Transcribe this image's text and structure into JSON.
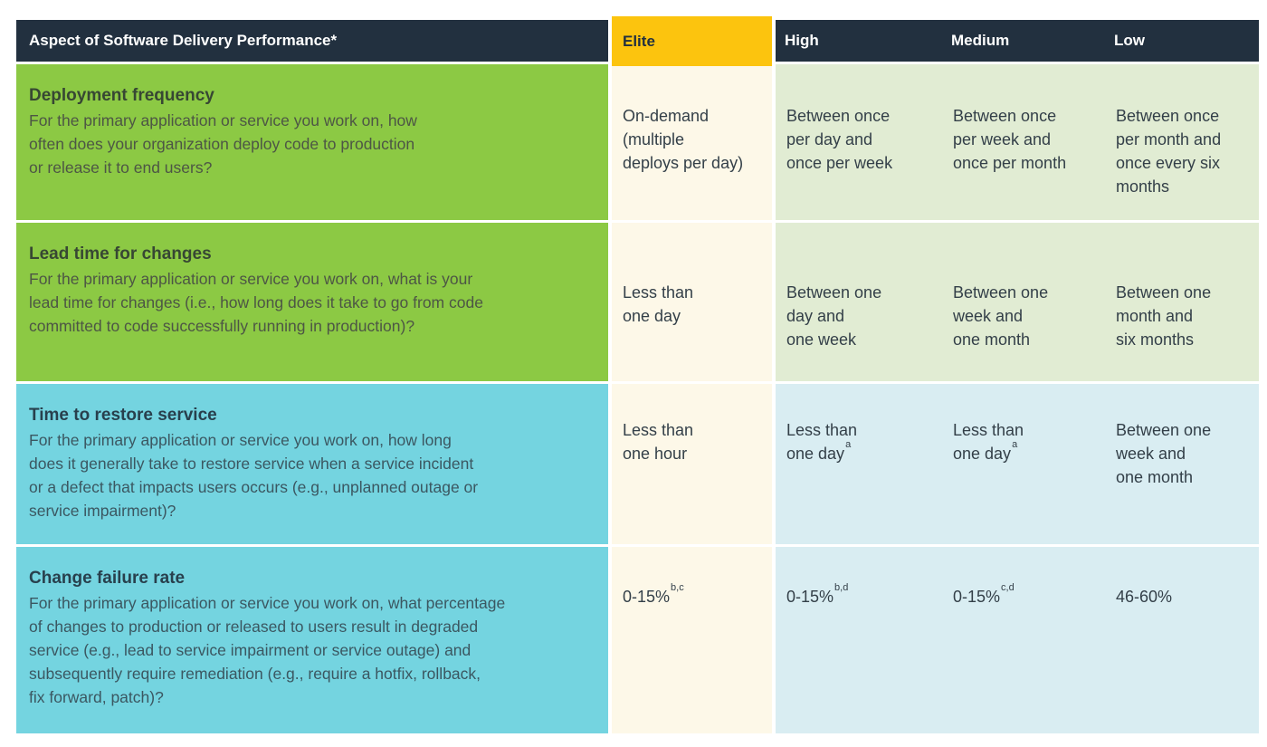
{
  "header": {
    "aspect_label": "Aspect of Software Delivery Performance*",
    "levels": [
      "Elite",
      "High",
      "Medium",
      "Low"
    ]
  },
  "colors": {
    "header_navy": "#22303f",
    "elite_yellow": "#fcc40e",
    "row_green": "#8cc944",
    "row_cyan": "#74d4e0",
    "elite_cream": "#fdf8e8",
    "cell_light_green": "#e1ecd3",
    "cell_light_blue": "#d9edf2"
  },
  "rows": [
    {
      "metric": "Deployment frequency",
      "description": "For the primary application or service you work on, how\noften does your organization deploy code to production\nor release it to end users?",
      "cells": [
        {
          "text": "On-demand\n(multiple\ndeploys per day)"
        },
        {
          "text": "Between once\nper day and\nonce per week"
        },
        {
          "text": "Between once\nper week and\nonce per month"
        },
        {
          "text": "Between once\nper month and\nonce every six\nmonths"
        }
      ]
    },
    {
      "metric": "Lead time for changes",
      "description": "For the primary application or service you work on, what is your\nlead time for changes (i.e., how long does it take to go from code\ncommitted to code successfully running in production)?",
      "cells": [
        {
          "text": "Less than\none day"
        },
        {
          "text": "Between one\nday and\none week"
        },
        {
          "text": "Between one\nweek and\none month"
        },
        {
          "text": "Between one\nmonth and\nsix months"
        }
      ]
    },
    {
      "metric": "Time to restore service",
      "description": "For the primary application or service you work on, how long\ndoes it generally take to restore service when a service incident\nor a defect that impacts users occurs (e.g., unplanned outage or\nservice impairment)?",
      "cells": [
        {
          "text": "Less than\none hour"
        },
        {
          "text": "Less than\none day",
          "sup": "a"
        },
        {
          "text": "Less than\none day",
          "sup": "a"
        },
        {
          "text": "Between one\nweek and\none month"
        }
      ]
    },
    {
      "metric": "Change failure rate",
      "description": "For the primary application or service you work on, what percentage\nof changes to production or released to users result in degraded\nservice (e.g., lead to service impairment or service outage) and\nsubsequently require remediation (e.g., require a hotfix, rollback,\nfix forward, patch)?",
      "cells": [
        {
          "text": "0-15%",
          "sup": "b,c"
        },
        {
          "text": "0-15%",
          "sup": "b,d"
        },
        {
          "text": "0-15%",
          "sup": "c,d"
        },
        {
          "text": "46-60%"
        }
      ]
    }
  ]
}
